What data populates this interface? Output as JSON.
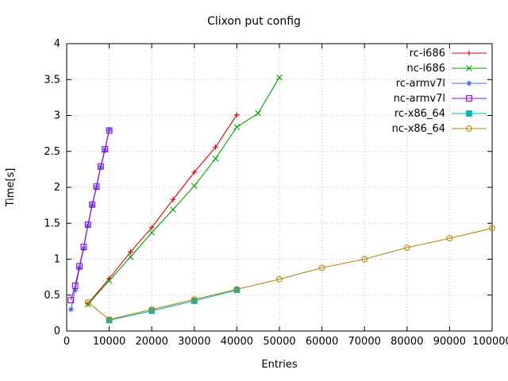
{
  "figure": {
    "background": "#ffffff",
    "frame_color": "#000000",
    "grid_color": "#b9b9b9"
  },
  "chart_data": {
    "type": "line",
    "title": "Clixon put config",
    "xlabel": "Entries",
    "ylabel": "Time[s]",
    "xlim": [
      0,
      100000
    ],
    "ylim": [
      0,
      4
    ],
    "xticks": [
      0,
      10000,
      20000,
      30000,
      40000,
      50000,
      60000,
      70000,
      80000,
      90000,
      100000
    ],
    "yticks": [
      0,
      0.5,
      1,
      1.5,
      2,
      2.5,
      3,
      3.5,
      4
    ],
    "grid": true,
    "legend_position": "top-right",
    "series": [
      {
        "name": "rc-i686",
        "color": "#dd0000",
        "marker": "plus",
        "x": [
          5000,
          10000,
          15000,
          20000,
          25000,
          30000,
          35000,
          40000
        ],
        "y": [
          0.38,
          0.73,
          1.1,
          1.44,
          1.83,
          2.21,
          2.56,
          3.01
        ]
      },
      {
        "name": "nc-i686",
        "color": "#00a000",
        "marker": "x",
        "x": [
          5000,
          10000,
          15000,
          20000,
          25000,
          30000,
          35000,
          40000,
          45000,
          50000
        ],
        "y": [
          0.37,
          0.7,
          1.03,
          1.37,
          1.69,
          2.02,
          2.4,
          2.84,
          3.03,
          3.53
        ]
      },
      {
        "name": "rc-armv7l",
        "color": "#4169e1",
        "marker": "star",
        "x": [
          1000,
          2000,
          3000,
          4000,
          5000,
          6000,
          7000,
          8000,
          9000,
          10000
        ],
        "y": [
          0.3,
          0.57,
          0.88,
          1.15,
          1.47,
          1.75,
          2.0,
          2.28,
          2.52,
          2.8
        ]
      },
      {
        "name": "nc-armv7l",
        "color": "#9400d3",
        "marker": "square-open",
        "x": [
          1000,
          2000,
          3000,
          4000,
          5000,
          6000,
          7000,
          8000,
          9000,
          10000
        ],
        "y": [
          0.43,
          0.63,
          0.9,
          1.17,
          1.48,
          1.76,
          2.01,
          2.29,
          2.53,
          2.79
        ]
      },
      {
        "name": "rc-x86_64",
        "color": "#00b8b8",
        "marker": "square-filled",
        "x": [
          10000,
          20000,
          30000,
          40000
        ],
        "y": [
          0.15,
          0.28,
          0.42,
          0.57
        ]
      },
      {
        "name": "nc-x86_64",
        "color": "#b8860b",
        "marker": "circle-open",
        "x": [
          5000,
          10000,
          20000,
          30000,
          40000,
          50000,
          60000,
          70000,
          80000,
          90000,
          100000
        ],
        "y": [
          0.4,
          0.16,
          0.3,
          0.44,
          0.58,
          0.72,
          0.88,
          1.0,
          1.16,
          1.29,
          1.43
        ]
      }
    ]
  }
}
